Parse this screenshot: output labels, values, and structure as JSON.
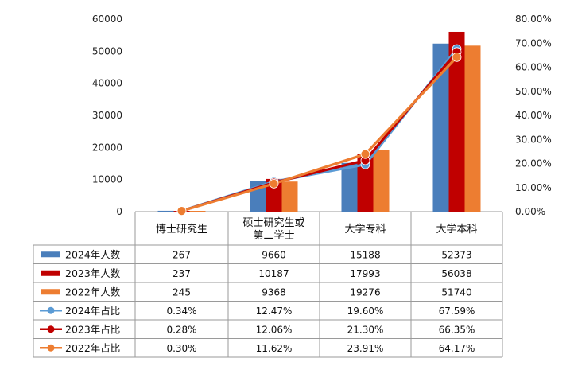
{
  "chart_data": {
    "type": "bar",
    "categories": [
      "博士研究生",
      "硕士研究生或第二学士",
      "大学专科",
      "大学本科"
    ],
    "category_lines": [
      [
        "博士研究生"
      ],
      [
        "硕士研究生或",
        "第二学士"
      ],
      [
        "大学专科"
      ],
      [
        "大学本科"
      ]
    ],
    "y_left_ticks": [
      "0",
      "10000",
      "20000",
      "30000",
      "40000",
      "50000",
      "60000"
    ],
    "y_left_range": [
      0,
      60000
    ],
    "y_right_ticks": [
      "0.00%",
      "10.00%",
      "20.00%",
      "30.00%",
      "40.00%",
      "50.00%",
      "60.00%",
      "70.00%",
      "80.00%"
    ],
    "y_right_range": [
      0,
      80
    ],
    "grid": false,
    "legend_position": "data-table",
    "series": [
      {
        "name": "2024年人数",
        "kind": "bar",
        "axis": "left",
        "color": "#4a7ebb",
        "values": [
          267,
          9660,
          15188,
          52373
        ],
        "labels": [
          "267",
          "9660",
          "15188",
          "52373"
        ]
      },
      {
        "name": "2023年人数",
        "kind": "bar",
        "axis": "left",
        "color": "#c00000",
        "values": [
          237,
          10187,
          17993,
          56038
        ],
        "labels": [
          "237",
          "10187",
          "17993",
          "56038"
        ]
      },
      {
        "name": "2022年人数",
        "kind": "bar",
        "axis": "left",
        "color": "#ed7d31",
        "values": [
          245,
          9368,
          19276,
          51740
        ],
        "labels": [
          "245",
          "9368",
          "19276",
          "51740"
        ]
      },
      {
        "name": "2024年占比",
        "kind": "line",
        "axis": "right",
        "color": "#5b9bd5",
        "values": [
          0.34,
          12.47,
          19.6,
          67.59
        ],
        "labels": [
          "0.34%",
          "12.47%",
          "19.60%",
          "67.59%"
        ]
      },
      {
        "name": "2023年占比",
        "kind": "line",
        "axis": "right",
        "color": "#c00000",
        "values": [
          0.28,
          12.06,
          21.3,
          66.35
        ],
        "labels": [
          "0.28%",
          "12.06%",
          "21.30%",
          "66.35%"
        ]
      },
      {
        "name": "2022年占比",
        "kind": "line",
        "axis": "right",
        "color": "#ed7d31",
        "values": [
          0.3,
          11.62,
          23.91,
          64.17
        ],
        "labels": [
          "0.30%",
          "11.62%",
          "23.91%",
          "64.17%"
        ]
      }
    ]
  }
}
